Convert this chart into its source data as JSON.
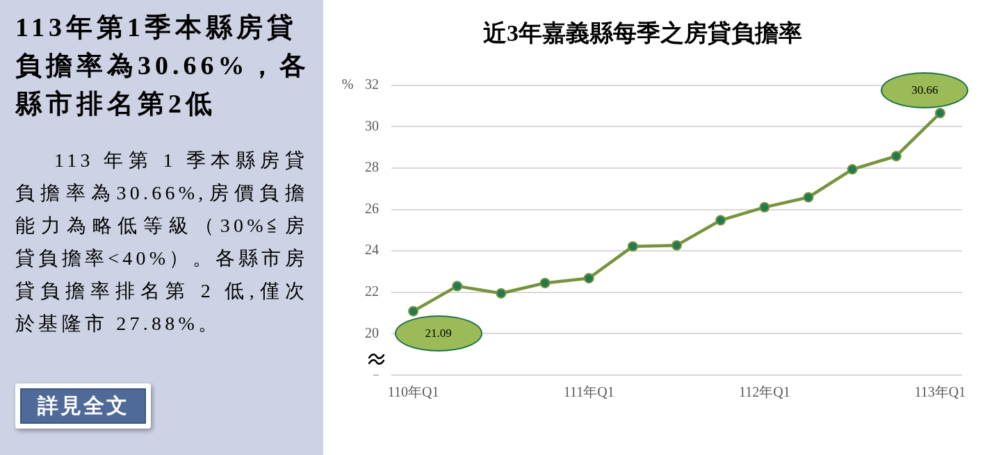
{
  "chart_data": [
    {
      "type": "other",
      "title": "113年第1季本縣房貸負擔率為30.66%，各縣市排名第2低",
      "annotations": [
        "113 年第 1 季本縣房貸負擔率為30.66%,房價負擔能力為略低等級（30%≦房貸負擔率<40%）。各縣市房貸負擔率排名第 2 低,僅次於基隆市 27.88%。",
        "詳見全文"
      ]
    },
    {
      "type": "line",
      "title": "近3年嘉義縣每季之房貸負擔率",
      "ylabel": "%",
      "categories": [
        "110年Q1",
        null,
        null,
        null,
        "111年Q1",
        null,
        null,
        null,
        "112年Q1",
        null,
        null,
        null,
        "113年Q1"
      ],
      "series": [
        {
          "color": "#77933c",
          "colors": [
            "#217a52",
            "#217a52",
            "#217a52",
            "#217a52",
            "#217a52",
            "#217a52",
            "#217a52",
            "#217a52",
            "#217a52",
            "#217a52",
            "#217a52",
            "#217a52",
            "#217a52"
          ],
          "values": [
            21.09,
            22.3,
            21.95,
            22.45,
            22.68,
            24.22,
            24.27,
            25.48,
            26.11,
            26.59,
            27.94,
            28.58,
            30.66
          ],
          "value_labels": [
            "21.09",
            null,
            null,
            null,
            null,
            null,
            null,
            null,
            null,
            null,
            null,
            null,
            "30.66"
          ]
        }
      ],
      "ylim": [
        18,
        32
      ],
      "yticks": [
        {
          "value": 18,
          "label": null
        },
        20,
        22,
        24,
        26,
        28,
        30,
        32
      ],
      "grid": "y",
      "marker": "circle",
      "line_style": "solid"
    }
  ]
}
